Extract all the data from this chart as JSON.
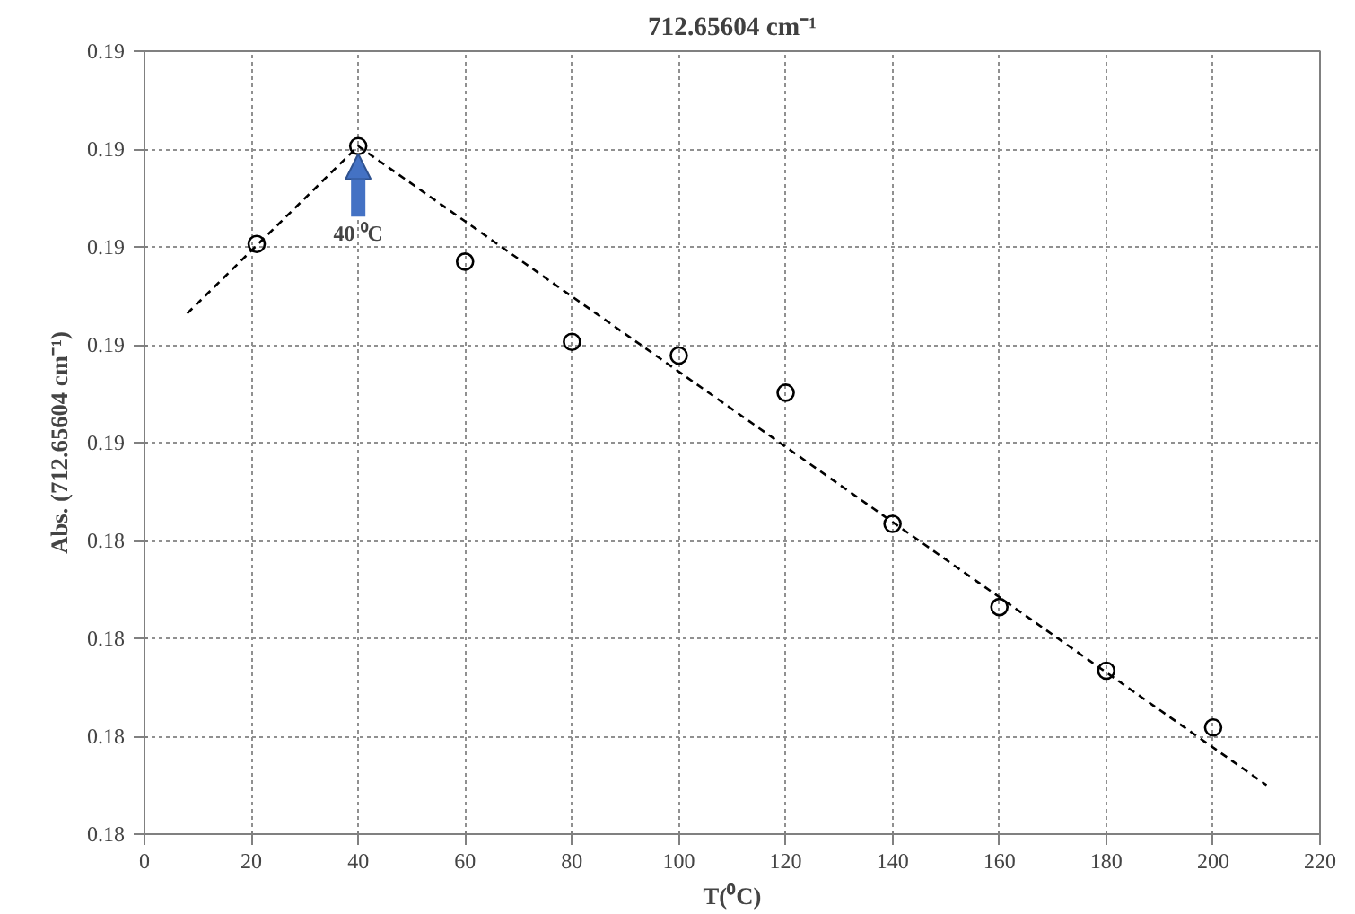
{
  "chart_data": {
    "type": "scatter",
    "title": "712.65604 cm⁻¹",
    "xlabel": "T(⁰C)",
    "ylabel": "Abs. (712.65604 cm⁻¹)",
    "x": [
      21,
      40,
      60,
      80,
      100,
      120,
      140,
      160,
      180,
      200
    ],
    "series": [
      {
        "color": "#000000",
        "marker": "circle",
        "values": [
          0.18703,
          0.18803,
          0.18685,
          0.18603,
          0.18589,
          0.18551,
          0.18417,
          0.18332,
          0.18267,
          0.18209
        ]
      },
      {
        "type": "line",
        "color": "#000000",
        "line_style": "dashed",
        "marker": "none",
        "x": [
          8,
          40,
          210
        ],
        "values": [
          0.18632,
          0.18803,
          0.1815
        ]
      }
    ],
    "xlim": [
      0,
      220
    ],
    "xticks": [
      0,
      20,
      40,
      60,
      80,
      100,
      120,
      140,
      160,
      180,
      200,
      220
    ],
    "ylim": [
      0.181,
      0.189
    ],
    "yticks": [
      {
        "value": 0.181,
        "label": "0.18"
      },
      {
        "value": 0.182,
        "label": "0.18"
      },
      {
        "value": 0.183,
        "label": "0.18"
      },
      {
        "value": 0.184,
        "label": "0.18"
      },
      {
        "value": 0.185,
        "label": "0.19"
      },
      {
        "value": 0.186,
        "label": "0.19"
      },
      {
        "value": 0.187,
        "label": "0.19"
      },
      {
        "value": 0.188,
        "label": "0.19"
      },
      {
        "value": 0.189,
        "label": "0.19"
      }
    ],
    "grid": true,
    "annotations": [
      {
        "text": "40 ⁰C",
        "x": 40,
        "y": 0.18803
      }
    ]
  }
}
